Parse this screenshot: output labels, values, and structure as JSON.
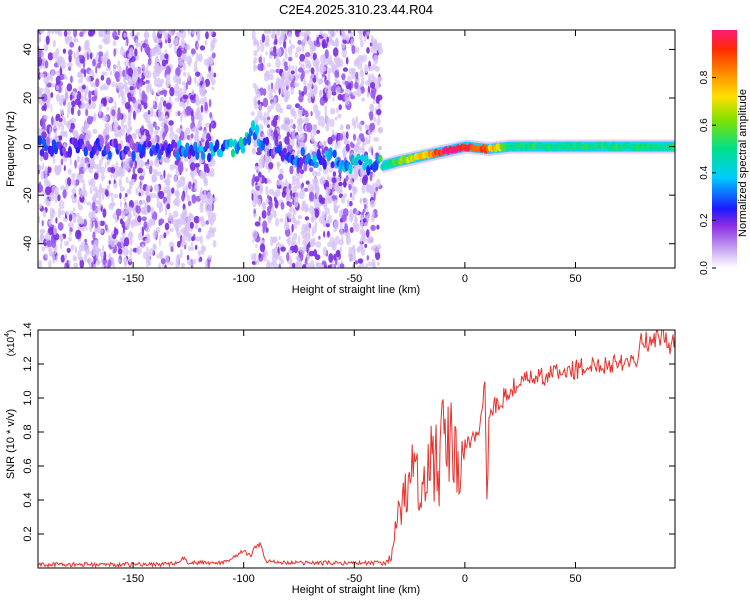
{
  "title": "C2E4.2025.310.23.44.R04",
  "colors": {
    "snr_line": "#e8322d",
    "signal_core": "#e8322d",
    "noise": "#8a4ae6",
    "noise_light": "#d9c7f5",
    "axes": "#000000"
  },
  "chart_data": [
    {
      "type": "heatmap",
      "title": "C2E4.2025.310.23.44.R04",
      "xlabel": "Height of straight line (km)",
      "ylabel": "Frequency (Hz)",
      "xlim": [
        -193,
        95
      ],
      "ylim": [
        -50,
        48
      ],
      "x_ticks": [
        -150,
        -100,
        -50,
        0,
        50
      ],
      "y_ticks": [
        -40,
        -20,
        0,
        20,
        40
      ],
      "colorbar": {
        "label": "Normalized spectral amplitude",
        "range": [
          0,
          1
        ],
        "ticks": [
          0.0,
          0.2,
          0.4,
          0.6,
          0.8
        ],
        "tick_labels": [
          "0.0",
          "0.2",
          "0.4",
          "0.6",
          "0.8"
        ],
        "colormap": "rainbow"
      },
      "noise_regions_x": [
        [
          -193,
          -132
        ],
        [
          -131,
          -113
        ],
        [
          -96,
          -38
        ]
      ],
      "signal_track": {
        "x": [
          -193,
          -150,
          -120,
          -100,
          -97,
          -90,
          -85,
          -38,
          -30,
          -20,
          -10,
          0,
          10,
          20,
          50,
          95
        ],
        "frequency": [
          0,
          -1,
          -2,
          0,
          7,
          0,
          -3,
          -8,
          -6,
          -4,
          -2,
          0,
          -1,
          0,
          0,
          0
        ],
        "amplitude": [
          0.2,
          0.2,
          0.3,
          0.35,
          0.3,
          0.2,
          0.2,
          0.4,
          0.6,
          0.75,
          0.95,
          1.0,
          0.85,
          0.5,
          0.5,
          0.5
        ]
      }
    },
    {
      "type": "line",
      "xlabel": "Height of straight line (km)",
      "ylabel": "SNR (10 * v/v)",
      "y_multiplier": "(x10",
      "y_multiplier_exp": "4",
      "xlim": [
        -193,
        95
      ],
      "ylim": [
        0,
        1.4
      ],
      "x_ticks": [
        -150,
        -100,
        -50,
        0,
        50
      ],
      "y_ticks": [
        0.2,
        0.4,
        0.6,
        0.8,
        1.0,
        1.2,
        1.4
      ],
      "y_tick_labels": [
        "0.2",
        "0.4",
        "0.6",
        "0.8",
        "1.0",
        "1.2",
        "1.4"
      ],
      "series": [
        {
          "x": [
            -193,
            -170,
            -150,
            -130,
            -127,
            -125,
            -110,
            -105,
            -100,
            -97,
            -95,
            -92,
            -90,
            -80,
            -60,
            -40,
            -36,
            -33,
            -31,
            -29,
            -27,
            -25,
            -23,
            -21,
            -20,
            -18,
            -15,
            -12,
            -10,
            -8,
            -5,
            -3,
            0,
            3,
            5,
            7,
            9,
            10,
            11,
            12,
            13,
            15,
            20,
            25,
            30,
            35,
            40,
            45,
            50,
            55,
            60,
            65,
            70,
            75,
            78,
            80,
            82,
            85,
            90,
            92,
            95
          ],
          "values": [
            0.02,
            0.02,
            0.02,
            0.025,
            0.06,
            0.03,
            0.03,
            0.06,
            0.1,
            0.07,
            0.12,
            0.14,
            0.04,
            0.03,
            0.03,
            0.03,
            0.03,
            0.08,
            0.25,
            0.35,
            0.45,
            0.55,
            0.8,
            0.5,
            0.3,
            0.55,
            0.7,
            0.6,
            0.75,
            0.8,
            0.68,
            0.65,
            0.7,
            0.75,
            0.8,
            0.85,
            1.1,
            0.35,
            0.95,
            0.9,
            0.95,
            0.95,
            1.05,
            1.08,
            1.12,
            1.12,
            1.15,
            1.15,
            1.17,
            1.18,
            1.2,
            1.2,
            1.22,
            1.22,
            1.25,
            1.36,
            1.33,
            1.34,
            1.37,
            1.3,
            1.36
          ]
        }
      ]
    }
  ]
}
